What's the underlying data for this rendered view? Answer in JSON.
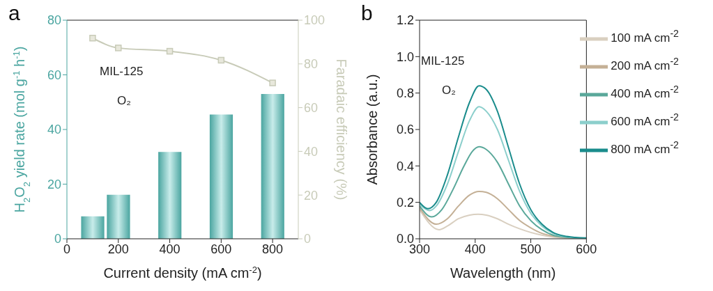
{
  "chart_data": [
    {
      "type": "bar",
      "title": "a",
      "xlabel": "Current density (mA cm$^{-2}$)",
      "ylabel": "H$_{2}$O$_{2}$ yield rate (mol g$^{-1}$ h$^{-1}$)",
      "y2label": "Faradaic efficiency (%)",
      "annotations": [
        "MIL-125",
        "O₂"
      ],
      "x": [
        100,
        200,
        400,
        600,
        800
      ],
      "xlim": [
        0,
        900
      ],
      "xticks": [
        0,
        200,
        400,
        600,
        800
      ],
      "ylim": [
        0,
        80
      ],
      "yticks": [
        0,
        20,
        40,
        60,
        80
      ],
      "y2lim": [
        0,
        100
      ],
      "y2ticks": [
        0,
        20,
        40,
        60,
        80,
        100
      ],
      "legend": false,
      "series": [
        {
          "color": "#4aa5a0",
          "values": [
            8.2,
            16.1,
            31.8,
            45.5,
            53.0
          ]
        },
        {
          "type": "line",
          "axis": "y2",
          "color": "#c8cbb8",
          "marker": "square",
          "values": [
            91.8,
            87.3,
            85.8,
            81.7,
            71.3
          ]
        }
      ]
    },
    {
      "type": "line",
      "title": "b",
      "xlabel": "Wavelength (nm)",
      "ylabel": "Absorbance (a.u.)",
      "annotations": [
        "MIL-125",
        "O₂"
      ],
      "xlim": [
        300,
        600
      ],
      "xticks": [
        300,
        400,
        500,
        600
      ],
      "ylim": [
        0,
        1.2
      ],
      "yticks": [
        {
          "value": 0,
          "label": "0.0"
        },
        0.2,
        0.4,
        0.6,
        0.8,
        {
          "value": 1,
          "label": "1.0"
        },
        1.2
      ],
      "legend": "top right",
      "marker": "none",
      "series": [
        {
          "name": "100 mA cm$^{-2}$",
          "color": "#d9cfc0",
          "x": [
            300,
            335,
            350,
            370,
            390,
            405,
            420,
            440,
            460,
            480,
            500,
            520,
            540,
            560,
            580,
            600
          ],
          "values": [
            0.16,
            0.05,
            0.07,
            0.11,
            0.13,
            0.135,
            0.13,
            0.11,
            0.08,
            0.055,
            0.035,
            0.02,
            0.01,
            0.005,
            0.003,
            0.002
          ]
        },
        {
          "name": "200 mA cm$^{-2}$",
          "color": "#c4b096",
          "x": [
            300,
            330,
            350,
            370,
            390,
            407,
            420,
            440,
            460,
            480,
            500,
            520,
            540,
            560,
            580,
            600
          ],
          "values": [
            0.17,
            0.08,
            0.11,
            0.18,
            0.24,
            0.26,
            0.255,
            0.22,
            0.16,
            0.1,
            0.06,
            0.03,
            0.015,
            0.008,
            0.004,
            0.003
          ]
        },
        {
          "name": "400 mA cm$^{-2}$",
          "color": "#5aa89a",
          "x": [
            300,
            322,
            340,
            360,
            380,
            395,
            407,
            420,
            440,
            460,
            480,
            500,
            520,
            540,
            560,
            580,
            600
          ],
          "values": [
            0.18,
            0.12,
            0.16,
            0.27,
            0.4,
            0.48,
            0.505,
            0.49,
            0.42,
            0.3,
            0.18,
            0.1,
            0.05,
            0.02,
            0.01,
            0.005,
            0.003
          ]
        },
        {
          "name": "600 mA cm$^{-2}$",
          "color": "#8ccfcc",
          "x": [
            300,
            318,
            330,
            350,
            370,
            390,
            407,
            420,
            440,
            460,
            480,
            500,
            520,
            540,
            560,
            580,
            600
          ],
          "values": [
            0.19,
            0.155,
            0.18,
            0.3,
            0.48,
            0.65,
            0.725,
            0.7,
            0.6,
            0.43,
            0.26,
            0.14,
            0.07,
            0.03,
            0.012,
            0.006,
            0.004
          ]
        },
        {
          "name": "800 mA cm$^{-2}$",
          "color": "#1a8c8c",
          "x": [
            300,
            315,
            330,
            350,
            370,
            390,
            407,
            420,
            440,
            460,
            480,
            500,
            520,
            540,
            560,
            580,
            600
          ],
          "values": [
            0.2,
            0.165,
            0.2,
            0.35,
            0.56,
            0.75,
            0.84,
            0.82,
            0.7,
            0.5,
            0.3,
            0.16,
            0.08,
            0.035,
            0.015,
            0.008,
            0.005
          ]
        }
      ]
    }
  ]
}
